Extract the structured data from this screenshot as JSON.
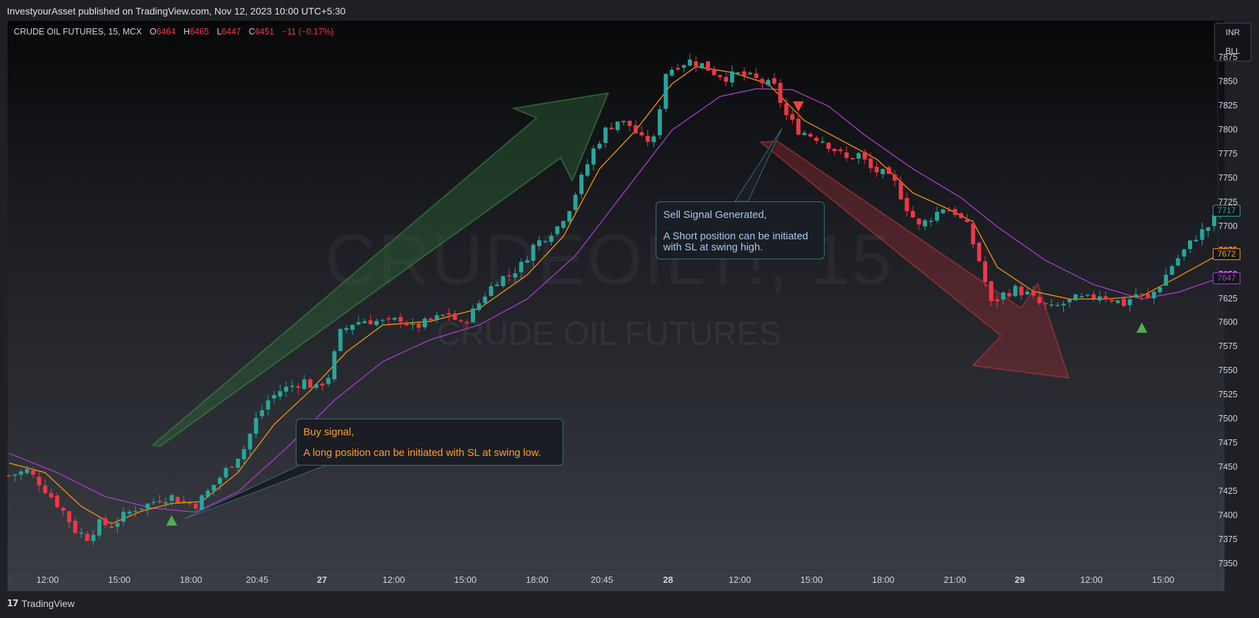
{
  "header": {
    "published": "InvestyourAsset published on TradingView.com, Nov 12, 2023 10:00 UTC+5:30"
  },
  "legend": {
    "symbol": "CRUDE OIL FUTURES, 15, MCX",
    "o_label": "O",
    "o": "6464",
    "h_label": "H",
    "h": "6465",
    "l_label": "L",
    "l": "6447",
    "c_label": "C",
    "c": "6451",
    "change": "−11 (−0.17%)"
  },
  "currency": {
    "top": "INR",
    "bottom": "BLL"
  },
  "watermark": {
    "ticker": "CRUDEOILT!, 15",
    "name": "CRUDE OIL FUTURES"
  },
  "annotations": {
    "buy": {
      "title": "Buy signal,",
      "body": "A long position can be initiated with SL at swing low."
    },
    "sell": {
      "title": "Sell Signal Generated,",
      "body1": "A Short position can be initiated",
      "body2": "with SL at swing high."
    }
  },
  "price_tags": [
    {
      "value": "7717",
      "color": "#26a69a"
    },
    {
      "value": "7672",
      "color": "#ff9800"
    },
    {
      "value": "7647",
      "color": "#b23bd6"
    }
  ],
  "branding": {
    "name": "TradingView"
  },
  "colors": {
    "up": "#26a69a",
    "down": "#f23645",
    "ema_fast": "#ff9800",
    "ema_slow": "#b23bd6",
    "arrow_up": "#2d6a36",
    "arrow_down": "#8b2a30",
    "signal_up": "#4caf50",
    "signal_down": "#f44336"
  },
  "chart_data": {
    "type": "candlestick",
    "y_ticks": [
      7875,
      7850,
      7825,
      7800,
      7775,
      7750,
      7725,
      7700,
      7675,
      7650,
      7625,
      7600,
      7575,
      7550,
      7525,
      7500,
      7475,
      7450,
      7425,
      7400,
      7375,
      7350
    ],
    "x_ticks": [
      {
        "label": "12:00",
        "bold": false
      },
      {
        "label": "15:00",
        "bold": false
      },
      {
        "label": "18:00",
        "bold": false
      },
      {
        "label": "20:45",
        "bold": false
      },
      {
        "label": "27",
        "bold": true
      },
      {
        "label": "12:00",
        "bold": false
      },
      {
        "label": "15:00",
        "bold": false
      },
      {
        "label": "18:00",
        "bold": false
      },
      {
        "label": "20:45",
        "bold": false
      },
      {
        "label": "28",
        "bold": true
      },
      {
        "label": "12:00",
        "bold": false
      },
      {
        "label": "15:00",
        "bold": false
      },
      {
        "label": "18:00",
        "bold": false
      },
      {
        "label": "21:00",
        "bold": false
      },
      {
        "label": "29",
        "bold": true
      },
      {
        "label": "12:00",
        "bold": false
      },
      {
        "label": "15:00",
        "bold": false
      }
    ],
    "ylim": [
      7350,
      7885
    ],
    "close_path": [
      [
        0,
        7442
      ],
      [
        3,
        7447
      ],
      [
        5,
        7435
      ],
      [
        7,
        7420
      ],
      [
        9,
        7405
      ],
      [
        11,
        7385
      ],
      [
        13,
        7378
      ],
      [
        15,
        7392
      ],
      [
        17,
        7390
      ],
      [
        19,
        7400
      ],
      [
        21,
        7408
      ],
      [
        23,
        7412
      ],
      [
        25,
        7418
      ],
      [
        27,
        7420
      ],
      [
        29,
        7415
      ],
      [
        31,
        7412
      ],
      [
        33,
        7425
      ],
      [
        35,
        7440
      ],
      [
        37,
        7455
      ],
      [
        39,
        7470
      ],
      [
        41,
        7500
      ],
      [
        43,
        7520
      ],
      [
        45,
        7530
      ],
      [
        47,
        7535
      ],
      [
        49,
        7540
      ],
      [
        51,
        7532
      ],
      [
        53,
        7545
      ],
      [
        55,
        7590
      ],
      [
        57,
        7600
      ],
      [
        59,
        7603
      ],
      [
        61,
        7602
      ],
      [
        63,
        7600
      ],
      [
        65,
        7605
      ],
      [
        67,
        7595
      ],
      [
        69,
        7600
      ],
      [
        71,
        7605
      ],
      [
        73,
        7610
      ],
      [
        75,
        7598
      ],
      [
        77,
        7612
      ],
      [
        79,
        7630
      ],
      [
        81,
        7645
      ],
      [
        83,
        7650
      ],
      [
        85,
        7660
      ],
      [
        87,
        7680
      ],
      [
        89,
        7690
      ],
      [
        91,
        7700
      ],
      [
        93,
        7720
      ],
      [
        95,
        7750
      ],
      [
        97,
        7780
      ],
      [
        99,
        7800
      ],
      [
        101,
        7810
      ],
      [
        103,
        7805
      ],
      [
        105,
        7790
      ],
      [
        107,
        7790
      ],
      [
        109,
        7860
      ],
      [
        111,
        7868
      ],
      [
        113,
        7872
      ],
      [
        115,
        7868
      ],
      [
        117,
        7860
      ],
      [
        119,
        7855
      ],
      [
        121,
        7858
      ],
      [
        123,
        7855
      ],
      [
        125,
        7850
      ],
      [
        127,
        7845
      ],
      [
        129,
        7815
      ],
      [
        131,
        7800
      ],
      [
        133,
        7795
      ],
      [
        135,
        7790
      ],
      [
        137,
        7780
      ],
      [
        139,
        7770
      ],
      [
        141,
        7775
      ],
      [
        143,
        7760
      ],
      [
        145,
        7755
      ],
      [
        147,
        7745
      ],
      [
        149,
        7720
      ],
      [
        151,
        7700
      ],
      [
        153,
        7710
      ],
      [
        155,
        7720
      ],
      [
        157,
        7715
      ],
      [
        159,
        7700
      ],
      [
        161,
        7665
      ],
      [
        163,
        7620
      ],
      [
        165,
        7630
      ],
      [
        167,
        7635
      ],
      [
        169,
        7630
      ],
      [
        171,
        7620
      ],
      [
        173,
        7615
      ],
      [
        175,
        7620
      ],
      [
        177,
        7625
      ],
      [
        179,
        7625
      ],
      [
        181,
        7630
      ],
      [
        183,
        7625
      ],
      [
        185,
        7620
      ],
      [
        187,
        7630
      ],
      [
        189,
        7625
      ],
      [
        191,
        7640
      ],
      [
        193,
        7660
      ],
      [
        195,
        7675
      ],
      [
        197,
        7690
      ],
      [
        199,
        7700
      ],
      [
        201,
        7717
      ]
    ],
    "ema_fast": [
      [
        0,
        7455
      ],
      [
        6,
        7445
      ],
      [
        12,
        7410
      ],
      [
        17,
        7392
      ],
      [
        22,
        7405
      ],
      [
        27,
        7413
      ],
      [
        32,
        7415
      ],
      [
        38,
        7445
      ],
      [
        44,
        7495
      ],
      [
        50,
        7530
      ],
      [
        56,
        7570
      ],
      [
        62,
        7598
      ],
      [
        70,
        7602
      ],
      [
        78,
        7615
      ],
      [
        86,
        7650
      ],
      [
        92,
        7690
      ],
      [
        98,
        7760
      ],
      [
        104,
        7800
      ],
      [
        110,
        7848
      ],
      [
        114,
        7866
      ],
      [
        120,
        7860
      ],
      [
        126,
        7848
      ],
      [
        132,
        7810
      ],
      [
        138,
        7790
      ],
      [
        144,
        7770
      ],
      [
        150,
        7735
      ],
      [
        156,
        7718
      ],
      [
        160,
        7705
      ],
      [
        164,
        7658
      ],
      [
        170,
        7633
      ],
      [
        176,
        7625
      ],
      [
        182,
        7625
      ],
      [
        188,
        7628
      ],
      [
        194,
        7648
      ],
      [
        201,
        7672
      ]
    ],
    "ema_slow": [
      [
        0,
        7465
      ],
      [
        8,
        7445
      ],
      [
        16,
        7420
      ],
      [
        24,
        7408
      ],
      [
        31,
        7404
      ],
      [
        38,
        7425
      ],
      [
        46,
        7470
      ],
      [
        54,
        7520
      ],
      [
        62,
        7560
      ],
      [
        70,
        7583
      ],
      [
        78,
        7598
      ],
      [
        86,
        7625
      ],
      [
        94,
        7670
      ],
      [
        102,
        7735
      ],
      [
        110,
        7800
      ],
      [
        118,
        7835
      ],
      [
        124,
        7843
      ],
      [
        130,
        7842
      ],
      [
        136,
        7825
      ],
      [
        142,
        7795
      ],
      [
        150,
        7760
      ],
      [
        158,
        7730
      ],
      [
        164,
        7700
      ],
      [
        172,
        7665
      ],
      [
        180,
        7640
      ],
      [
        188,
        7625
      ],
      [
        194,
        7632
      ],
      [
        201,
        7647
      ]
    ],
    "signals": [
      {
        "type": "buy",
        "x": 27,
        "price": 7395
      },
      {
        "type": "sell",
        "x": 131,
        "price": 7825
      },
      {
        "type": "buy",
        "x": 188,
        "price": 7595
      }
    ]
  }
}
